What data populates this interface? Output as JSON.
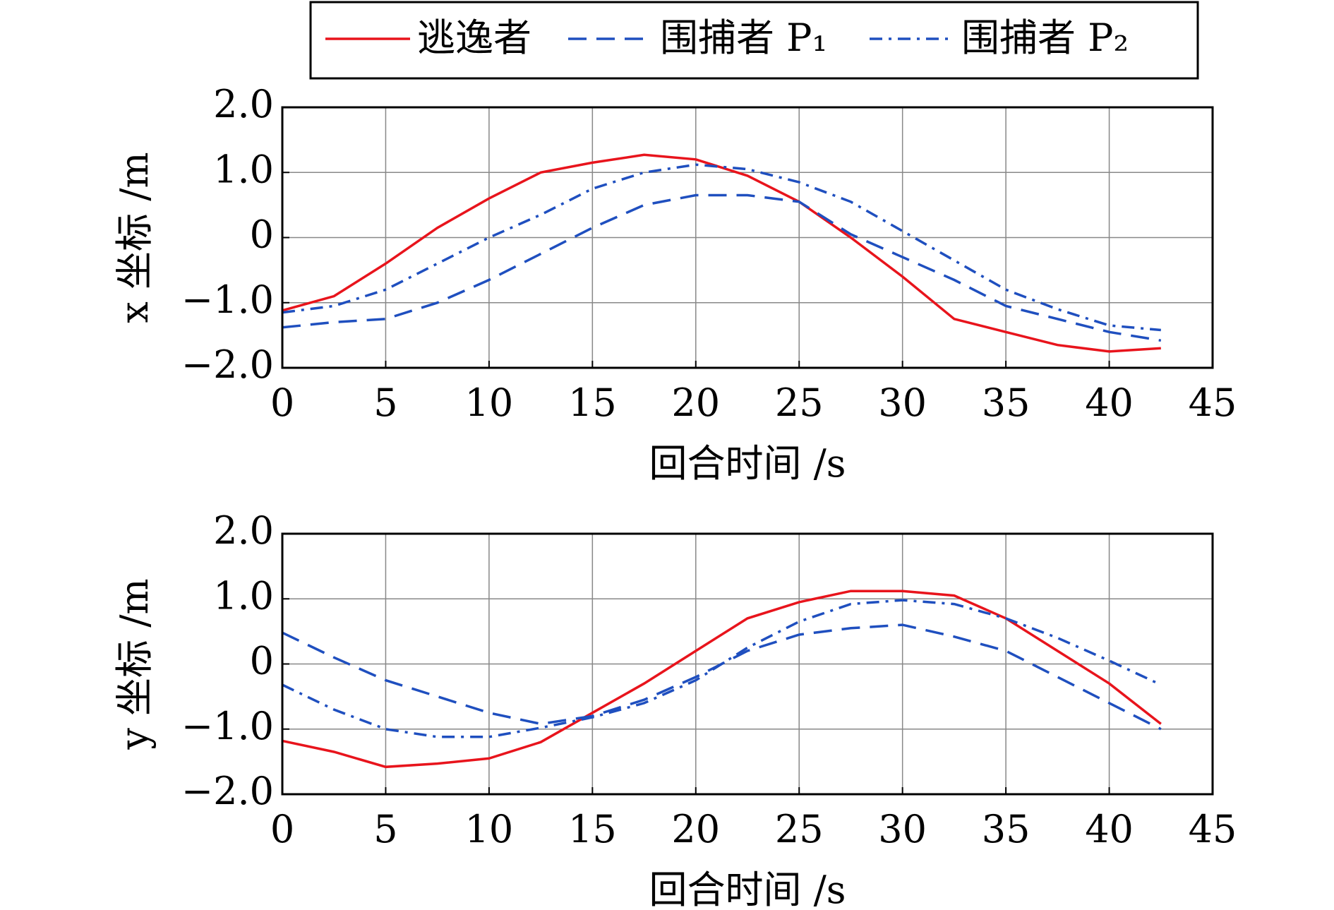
{
  "chart_data": [
    {
      "type": "line",
      "ylabel": "x 坐标 /m",
      "xlabel": "回合时间 /s",
      "legend": "top",
      "grid": true,
      "xlim": [
        0,
        45
      ],
      "ylim": [
        -2,
        2
      ],
      "xticks": [
        0,
        5,
        10,
        15,
        20,
        25,
        30,
        35,
        40,
        45
      ],
      "yticks": [
        {
          "value": -2,
          "label": "−2.0"
        },
        {
          "value": -1,
          "label": "−1.0"
        },
        0,
        {
          "value": 1,
          "label": "1.0"
        },
        {
          "value": 2,
          "label": "2.0"
        }
      ],
      "x": [
        0,
        2.5,
        5,
        7.5,
        10,
        12.5,
        15,
        17.5,
        20,
        22.5,
        25,
        27.5,
        30,
        32.5,
        35,
        37.5,
        40,
        42.5
      ],
      "series": [
        {
          "name": "逃逸者",
          "color": "#e8141c",
          "dash": "solid",
          "values": [
            -1.12,
            -0.9,
            -0.4,
            0.15,
            0.6,
            1.0,
            1.15,
            1.27,
            1.2,
            0.95,
            0.55,
            0.0,
            -0.6,
            -1.25,
            -1.45,
            -1.65,
            -1.75,
            -1.7
          ]
        },
        {
          "name": "围捕者 P₁",
          "color": "#1f4fbf",
          "dash": "dashed",
          "values": [
            -1.38,
            -1.3,
            -1.25,
            -1.0,
            -0.65,
            -0.25,
            0.15,
            0.5,
            0.65,
            0.65,
            0.55,
            0.05,
            -0.3,
            -0.65,
            -1.05,
            -1.25,
            -1.45,
            -1.58
          ]
        },
        {
          "name": "围捕者 P₂",
          "color": "#1f4fbf",
          "dash": "dashdot",
          "values": [
            -1.15,
            -1.05,
            -0.8,
            -0.4,
            0.0,
            0.35,
            0.75,
            1.0,
            1.12,
            1.05,
            0.85,
            0.55,
            0.1,
            -0.35,
            -0.8,
            -1.1,
            -1.35,
            -1.42
          ]
        }
      ]
    },
    {
      "type": "line",
      "ylabel": "y 坐标 /m",
      "xlabel": "回合时间 /s",
      "grid": true,
      "xlim": [
        0,
        45
      ],
      "ylim": [
        -2,
        2
      ],
      "xticks": [
        0,
        5,
        10,
        15,
        20,
        25,
        30,
        35,
        40,
        45
      ],
      "yticks": [
        {
          "value": -2,
          "label": "−2.0"
        },
        {
          "value": -1,
          "label": "−1.0"
        },
        0,
        {
          "value": 1,
          "label": "1.0"
        },
        {
          "value": 2,
          "label": "2.0"
        }
      ],
      "x": [
        0,
        2.5,
        5,
        7.5,
        10,
        12.5,
        15,
        17.5,
        20,
        22.5,
        25,
        27.5,
        30,
        32.5,
        35,
        37.5,
        40,
        42.5
      ],
      "series": [
        {
          "color": "#e8141c",
          "dash": "solid",
          "values": [
            -1.18,
            -1.35,
            -1.58,
            -1.53,
            -1.45,
            -1.2,
            -0.75,
            -0.3,
            0.2,
            0.7,
            0.95,
            1.12,
            1.12,
            1.05,
            0.7,
            0.2,
            -0.3,
            -0.92
          ]
        },
        {
          "color": "#1f4fbf",
          "dash": "dashed",
          "values": [
            0.48,
            0.1,
            -0.25,
            -0.5,
            -0.75,
            -0.92,
            -0.8,
            -0.55,
            -0.2,
            0.2,
            0.45,
            0.55,
            0.6,
            0.42,
            0.2,
            -0.2,
            -0.6,
            -1.0
          ]
        },
        {
          "color": "#1f4fbf",
          "dash": "dashdot",
          "values": [
            -0.32,
            -0.7,
            -1.0,
            -1.12,
            -1.12,
            -0.98,
            -0.82,
            -0.6,
            -0.25,
            0.25,
            0.65,
            0.92,
            0.98,
            0.92,
            0.7,
            0.4,
            0.05,
            -0.32
          ]
        }
      ]
    }
  ]
}
